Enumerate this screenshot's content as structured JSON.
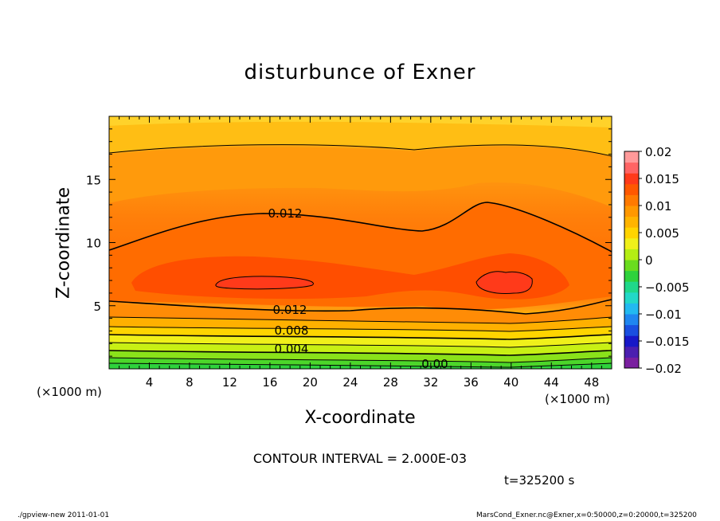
{
  "chart_data": {
    "type": "heatmap",
    "title": "disturbunce of Exner",
    "xlabel": "X-coordinate",
    "ylabel": "Z-coordinate",
    "x_unit": "(×1000 m)",
    "y_unit": "(×1000 m)",
    "xlim": [
      0,
      50
    ],
    "ylim": [
      0,
      20
    ],
    "x_ticks": [
      4,
      8,
      12,
      16,
      20,
      24,
      28,
      32,
      36,
      40,
      44,
      48
    ],
    "y_ticks": [
      5,
      10,
      15
    ],
    "contour_interval_text": "CONTOUR INTERVAL = 2.000E-03",
    "time_text": "t=325200 s",
    "contour_labels": [
      "0.012",
      "0.012",
      "0.008",
      "0.004",
      "0.00"
    ],
    "colorbar": {
      "range": [
        -0.02,
        0.02
      ],
      "ticks": [
        "0.02",
        "0.015",
        "0.01",
        "0.005",
        "0",
        "−0.005",
        "−0.01",
        "−0.015",
        "−0.02"
      ],
      "colors": [
        "#7a1fa0",
        "#4b1fb0",
        "#1818c8",
        "#1a4fe0",
        "#1f86f0",
        "#22b9f0",
        "#22d8c8",
        "#1fd88a",
        "#2ed23c",
        "#6adc1e",
        "#b4ee14",
        "#f0f01a",
        "#ffd400",
        "#ffb400",
        "#ff9800",
        "#ff7a00",
        "#ff5800",
        "#ff3a1a",
        "#ff6464",
        "#ff9a9a"
      ]
    }
  },
  "footer": {
    "left": "./gpview-new   2011-01-01",
    "right": "MarsCond_Exner.nc@Exner,x=0:50000,z=0:20000,t=325200"
  }
}
